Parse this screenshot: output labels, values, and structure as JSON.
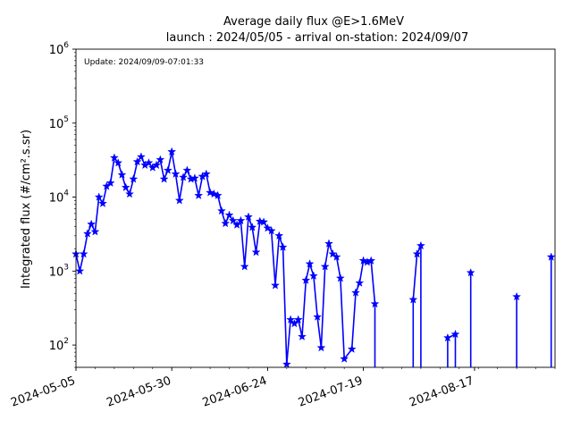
{
  "chart_data": {
    "type": "line",
    "title_line1": "Average daily flux @E>1.6MeV",
    "title_line2": "launch : 2024/05/05 - arrival on-station: 2024/09/07",
    "annotation": "Update: 2024/09/09-07:01:33",
    "ylabel": "Integrated flux (#/cm².s.sr)",
    "xlabel": "",
    "x_tick_labels": [
      "2024-05-05",
      "2024-05-30",
      "2024-06-24",
      "2024-07-19",
      "2024-08-17"
    ],
    "y_tick_labels": [
      {
        "base": "10",
        "exp": "2"
      },
      {
        "base": "10",
        "exp": "3"
      },
      {
        "base": "10",
        "exp": "4"
      },
      {
        "base": "10",
        "exp": "5"
      },
      {
        "base": "10",
        "exp": "6"
      }
    ],
    "xlim": [
      "2024-05-05",
      "2024-09-07"
    ],
    "ylim": [
      50,
      1000000
    ],
    "yscale": "log",
    "grid": false,
    "series": [
      {
        "color": "#0000ff",
        "marker": "star",
        "points": [
          [
            "2024-05-05",
            1700
          ],
          [
            "2024-05-06",
            1000
          ],
          [
            "2024-05-07",
            1700
          ],
          [
            "2024-05-08",
            3200
          ],
          [
            "2024-05-09",
            4300
          ],
          [
            "2024-05-10",
            3400
          ],
          [
            "2024-05-11",
            10000
          ],
          [
            "2024-05-12",
            8200
          ],
          [
            "2024-05-13",
            14000
          ],
          [
            "2024-05-14",
            15500
          ],
          [
            "2024-05-15",
            34000
          ],
          [
            "2024-05-16",
            29000
          ],
          [
            "2024-05-17",
            20000
          ],
          [
            "2024-05-18",
            13500
          ],
          [
            "2024-05-19",
            11000
          ],
          [
            "2024-05-20",
            17500
          ],
          [
            "2024-05-21",
            30000
          ],
          [
            "2024-05-22",
            35000
          ],
          [
            "2024-05-23",
            27000
          ],
          [
            "2024-05-24",
            29000
          ],
          [
            "2024-05-25",
            25000
          ],
          [
            "2024-05-26",
            27000
          ],
          [
            "2024-05-27",
            32000
          ],
          [
            "2024-05-28",
            17500
          ],
          [
            "2024-05-29",
            23000
          ],
          [
            "2024-05-30",
            41000
          ],
          [
            "2024-05-31",
            20500
          ],
          [
            "2024-06-01",
            9000
          ],
          [
            "2024-06-02",
            18500
          ],
          [
            "2024-06-03",
            23000
          ],
          [
            "2024-06-04",
            17500
          ],
          [
            "2024-06-05",
            18000
          ],
          [
            "2024-06-06",
            10500
          ],
          [
            "2024-06-07",
            19000
          ],
          [
            "2024-06-08",
            20500
          ],
          [
            "2024-06-09",
            11500
          ],
          [
            "2024-06-10",
            11000
          ],
          [
            "2024-06-11",
            10500
          ],
          [
            "2024-06-12",
            6500
          ],
          [
            "2024-06-13",
            4400
          ],
          [
            "2024-06-14",
            5700
          ],
          [
            "2024-06-15",
            4800
          ],
          [
            "2024-06-16",
            4200
          ],
          [
            "2024-06-17",
            4800
          ],
          [
            "2024-06-18",
            1150
          ],
          [
            "2024-06-19",
            5400
          ],
          [
            "2024-06-20",
            3900
          ],
          [
            "2024-06-21",
            1800
          ],
          [
            "2024-06-22",
            4700
          ],
          [
            "2024-06-23",
            4600
          ],
          [
            "2024-06-24",
            3800
          ],
          [
            "2024-06-25",
            3500
          ],
          [
            "2024-06-26",
            640
          ],
          [
            "2024-06-27",
            3000
          ],
          [
            "2024-06-28",
            2100
          ],
          [
            "2024-06-29",
            55
          ],
          [
            "2024-06-30",
            220
          ],
          [
            "2024-07-01",
            195
          ],
          [
            "2024-07-02",
            220
          ],
          [
            "2024-07-03",
            130
          ],
          [
            "2024-07-04",
            750
          ],
          [
            "2024-07-05",
            1250
          ],
          [
            "2024-07-06",
            860
          ],
          [
            "2024-07-07",
            240
          ],
          [
            "2024-07-08",
            92
          ],
          [
            "2024-07-09",
            1150
          ],
          [
            "2024-07-10",
            2350
          ],
          [
            "2024-07-11",
            1700
          ],
          [
            "2024-07-12",
            1550
          ],
          [
            "2024-07-13",
            800
          ],
          [
            "2024-07-14",
            65
          ],
          [
            "2024-07-16",
            88
          ],
          [
            "2024-07-17",
            510
          ],
          [
            "2024-07-18",
            690
          ],
          [
            "2024-07-19",
            1380
          ],
          [
            "2024-07-20",
            1320
          ],
          [
            "2024-07-21",
            1380
          ],
          [
            "2024-07-22",
            360
          ],
          [
            "2024-08-01",
            410
          ],
          [
            "2024-08-02",
            1700
          ],
          [
            "2024-08-03",
            2200
          ],
          [
            "2024-08-10",
            125
          ],
          [
            "2024-08-12",
            140
          ],
          [
            "2024-08-16",
            950
          ],
          [
            "2024-08-28",
            450
          ],
          [
            "2024-09-06",
            1550
          ]
        ]
      }
    ]
  }
}
